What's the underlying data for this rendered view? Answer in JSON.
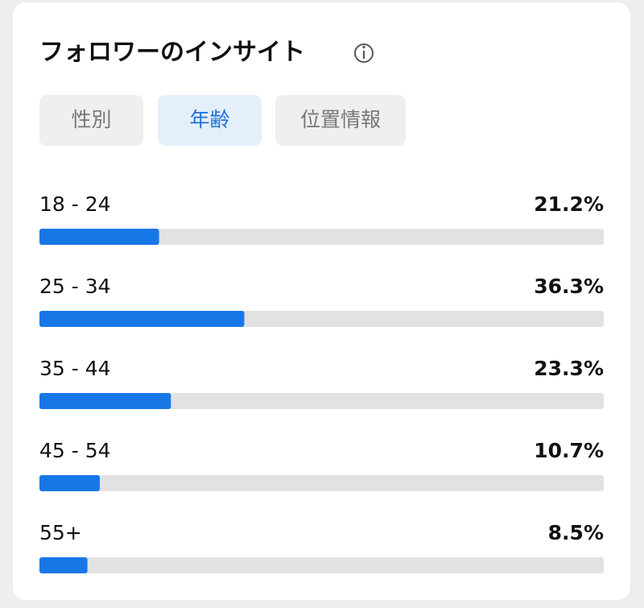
{
  "header": {
    "title": "フォロワーのインサイト"
  },
  "tabs": [
    "性別",
    "年齢",
    "位置情報"
  ],
  "selected_tab": 1,
  "chart_data": {
    "type": "bar",
    "orientation": "horizontal",
    "categories": [
      "18 - 24",
      "25 - 34",
      "35 - 44",
      "45 - 54",
      "55+"
    ],
    "values": [
      21.2,
      36.3,
      23.3,
      10.7,
      8.5
    ],
    "value_labels": [
      "21.2%",
      "36.3%",
      "23.3%",
      "10.7%",
      "8.5%"
    ],
    "color": "#1877e6",
    "xlim": [
      0,
      100
    ]
  }
}
